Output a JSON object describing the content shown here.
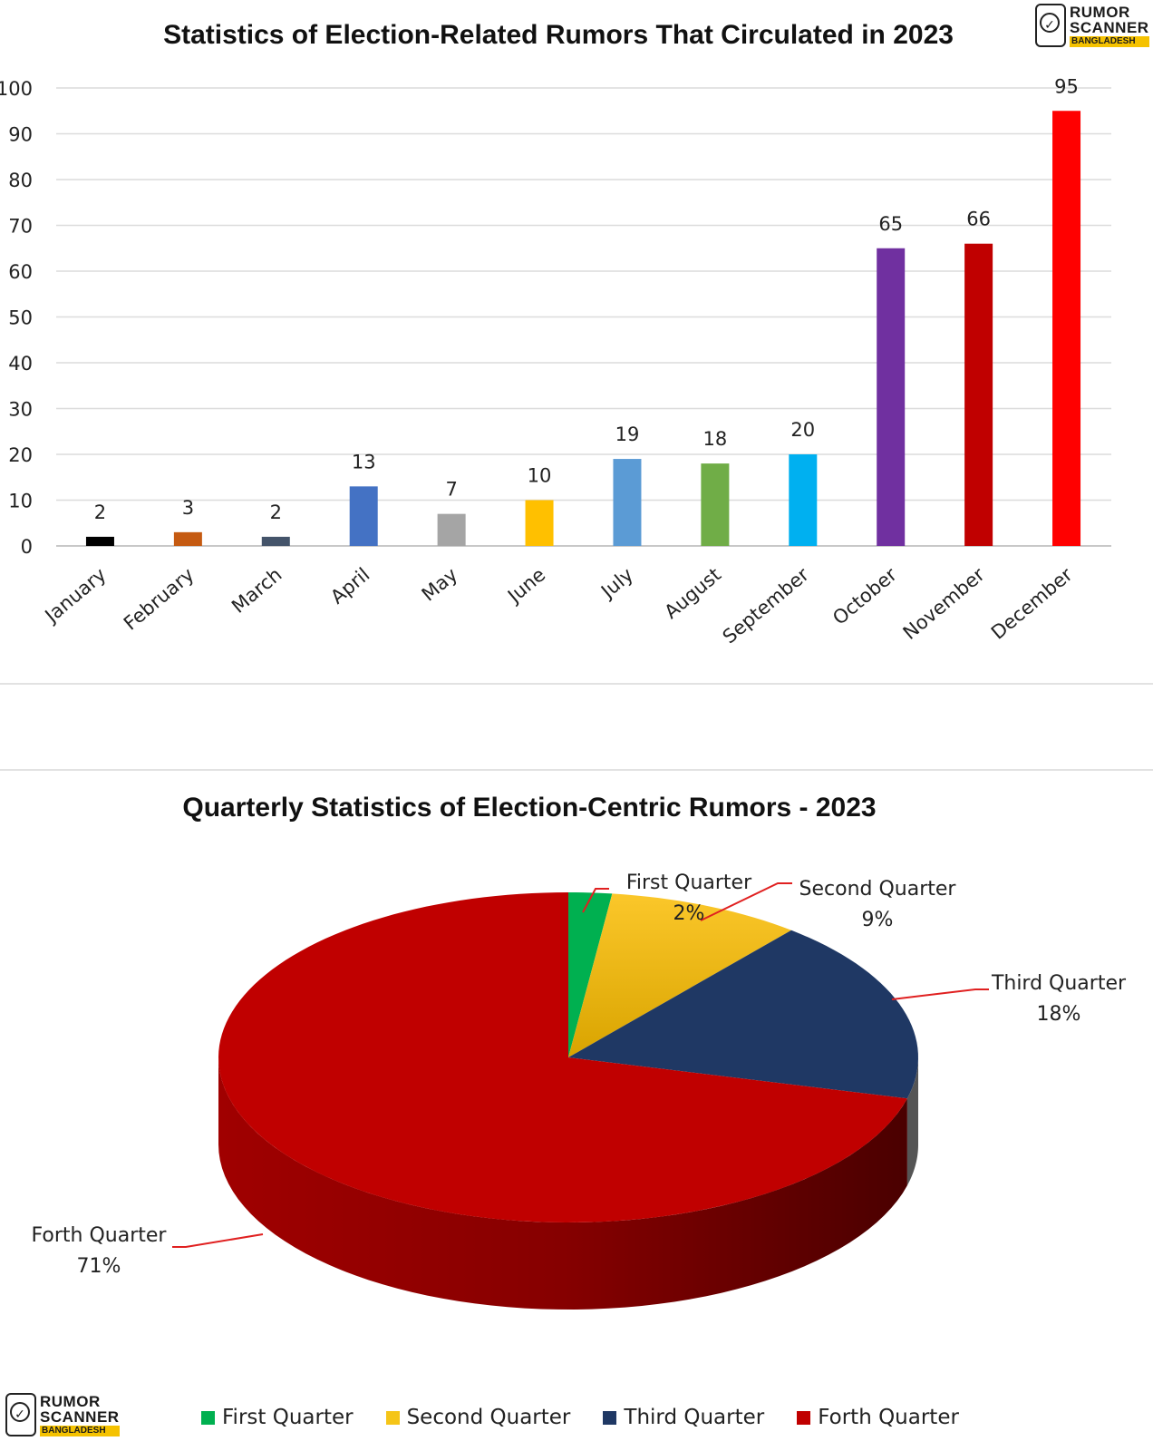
{
  "logo": {
    "line1": "RUMOR",
    "line2": "SCANNER",
    "line3": "BANGLADESH"
  },
  "chart_data": [
    {
      "type": "bar",
      "title": "Statistics of Election-Related Rumors That Circulated in 2023",
      "categories": [
        "January",
        "February",
        "March",
        "April",
        "May",
        "June",
        "July",
        "August",
        "September",
        "October",
        "November",
        "December"
      ],
      "values": [
        2,
        3,
        2,
        13,
        7,
        10,
        19,
        18,
        20,
        65,
        66,
        95
      ],
      "colors": [
        "#000000",
        "#c55a11",
        "#44546a",
        "#4472c4",
        "#a5a5a5",
        "#ffc000",
        "#5b9bd5",
        "#70ad47",
        "#00b0f0",
        "#7030a0",
        "#c00000",
        "#ff0000"
      ],
      "ylim": [
        0,
        100
      ],
      "yticks": [
        0,
        10,
        20,
        30,
        40,
        50,
        60,
        70,
        80,
        90,
        100
      ],
      "grid": true,
      "data_labels": true
    },
    {
      "type": "pie",
      "title": "Quarterly Statistics of Election-Centric Rumors - 2023",
      "labels": [
        "First Quarter",
        "Second Quarter",
        "Third Quarter",
        "Forth Quarter"
      ],
      "values": [
        2,
        9,
        18,
        71
      ],
      "value_labels": [
        "2%",
        "9%",
        "18%",
        "71%"
      ],
      "colors": [
        "#00b050",
        "#f5c518",
        "#1f3864",
        "#c00000"
      ],
      "legend": "bottom"
    }
  ]
}
